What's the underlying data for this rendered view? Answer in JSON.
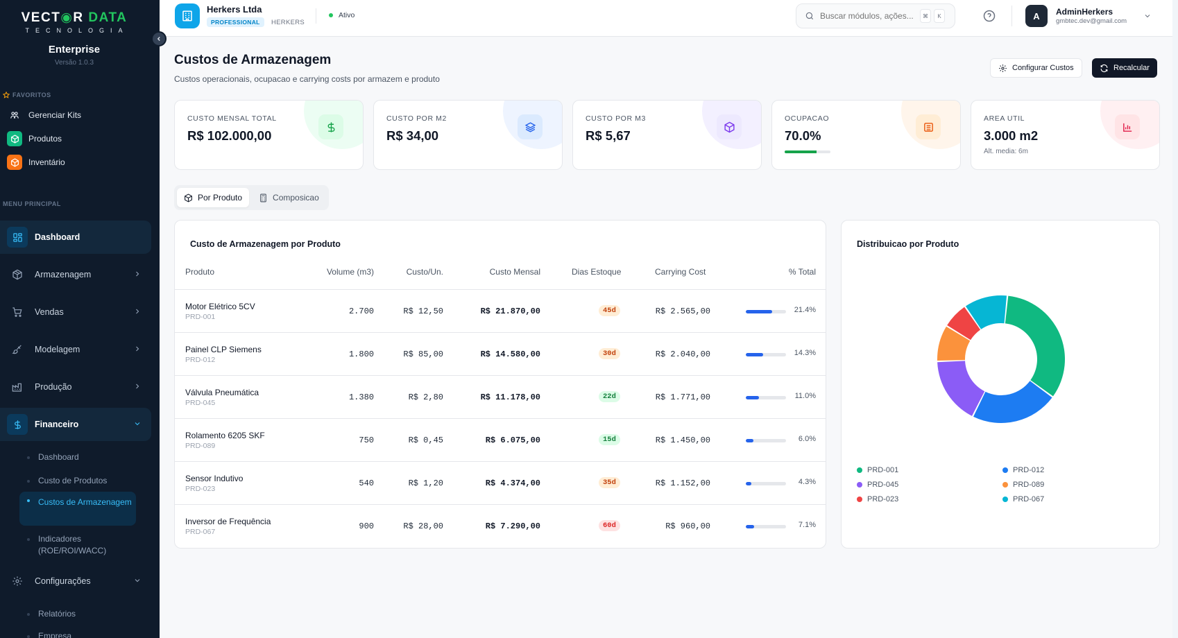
{
  "brand": {
    "logo_part1": "VECT",
    "logo_o": "◉",
    "logo_part2": "R",
    "logo_part3": "DATA",
    "logo_sub": "TECNOLOGIA",
    "plan": "Enterprise",
    "version": "Versão 1.0.3"
  },
  "sidebar": {
    "favorites_label": "FAVORITOS",
    "favorites": [
      {
        "label": "Gerenciar Kits",
        "icon": "kits-icon"
      },
      {
        "label": "Produtos",
        "icon": "box-icon",
        "color": "#10b981"
      },
      {
        "label": "Inventário",
        "icon": "box-icon",
        "color": "#f97316"
      }
    ],
    "menu_label": "MENU PRINCIPAL",
    "items": [
      {
        "label": "Dashboard",
        "icon": "grid-icon"
      },
      {
        "label": "Armazenagem",
        "icon": "package-icon"
      },
      {
        "label": "Vendas",
        "icon": "cart-icon"
      },
      {
        "label": "Modelagem",
        "icon": "brush-icon"
      },
      {
        "label": "Produção",
        "icon": "factory-icon"
      },
      {
        "label": "Financeiro",
        "icon": "dollar-icon"
      },
      {
        "label": "Configurações",
        "icon": "gear-icon"
      }
    ],
    "financeiro_sub": [
      "Dashboard",
      "Custo de Produtos",
      "Custos de Armazenagem",
      "Indicadores (ROE/ROI/WACC)"
    ],
    "config_sub": [
      "Relatórios",
      "Empresa"
    ]
  },
  "header": {
    "company": "Herkers Ltda",
    "badge": "PROFESSIONAL",
    "tenant": "HERKERS",
    "status": "Ativo",
    "search_placeholder": "Buscar módulos, ações...",
    "kbd1": "⌘",
    "kbd2": "K",
    "avatar_letter": "A",
    "user_name": "AdminHerkers",
    "user_email": "gmbtec.dev@gmail.com"
  },
  "page": {
    "title": "Custos de Armazenagem",
    "subtitle": "Custos operacionais, ocupacao e carrying costs por armazem e produto",
    "btn_config": "Configurar Custos",
    "btn_recalc": "Recalcular"
  },
  "kpis": [
    {
      "label": "CUSTO MENSAL TOTAL",
      "value": "R$ 102.000,00",
      "icon": "dollar-icon",
      "color": "#16a34a",
      "bg": "#dcfce7",
      "blob": "#ecfdf3"
    },
    {
      "label": "CUSTO POR M2",
      "value": "R$ 34,00",
      "icon": "layers-icon",
      "color": "#2563eb",
      "bg": "#dbeafe",
      "blob": "#eef4ff"
    },
    {
      "label": "CUSTO POR M3",
      "value": "R$ 5,67",
      "icon": "cube-icon",
      "color": "#7c3aed",
      "bg": "#ede9fe",
      "blob": "#f3f0ff"
    },
    {
      "label": "OCUPACAO",
      "value": "70.0%",
      "icon": "warehouse-icon",
      "color": "#ea580c",
      "bg": "#ffedd5",
      "blob": "#fff5eb",
      "progress": 0.7
    },
    {
      "label": "AREA UTIL",
      "value": "3.000 m2",
      "sub": "Alt. media: 6m",
      "icon": "chart-bar-icon",
      "color": "#e11d48",
      "bg": "#ffe4e6",
      "blob": "#fff0f2"
    }
  ],
  "tabs": [
    {
      "label": "Por Produto",
      "icon": "box-icon"
    },
    {
      "label": "Composicao",
      "icon": "calculator-icon"
    }
  ],
  "table": {
    "title": "Custo de Armazenagem por Produto",
    "headers": [
      "Produto",
      "Volume (m3)",
      "Custo/Un.",
      "Custo Mensal",
      "Dias Estoque",
      "Carrying Cost",
      "% Total"
    ],
    "rows": [
      {
        "name": "Motor Elétrico 5CV",
        "code": "PRD-001",
        "volume": "2.700",
        "unit": "R$ 12,50",
        "monthly": "R$ 21.870,00",
        "days": "45d",
        "days_color": "#c2410c",
        "days_bg": "#ffedd5",
        "carrying": "R$ 2.565,00",
        "pct": "21.4%",
        "pct_value": 21.4
      },
      {
        "name": "Painel CLP Siemens",
        "code": "PRD-012",
        "volume": "1.800",
        "unit": "R$ 85,00",
        "monthly": "R$ 14.580,00",
        "days": "30d",
        "days_color": "#c2410c",
        "days_bg": "#ffedd5",
        "carrying": "R$ 2.040,00",
        "pct": "14.3%",
        "pct_value": 14.3
      },
      {
        "name": "Válvula Pneumática",
        "code": "PRD-045",
        "volume": "1.380",
        "unit": "R$ 2,80",
        "monthly": "R$ 11.178,00",
        "days": "22d",
        "days_color": "#15803d",
        "days_bg": "#dcfce7",
        "carrying": "R$ 1.771,00",
        "pct": "11.0%",
        "pct_value": 11.0
      },
      {
        "name": "Rolamento 6205 SKF",
        "code": "PRD-089",
        "volume": "750",
        "unit": "R$ 0,45",
        "monthly": "R$ 6.075,00",
        "days": "15d",
        "days_color": "#15803d",
        "days_bg": "#dcfce7",
        "carrying": "R$ 1.450,00",
        "pct": "6.0%",
        "pct_value": 6.0
      },
      {
        "name": "Sensor Indutivo",
        "code": "PRD-023",
        "volume": "540",
        "unit": "R$ 1,20",
        "monthly": "R$ 4.374,00",
        "days": "35d",
        "days_color": "#c2410c",
        "days_bg": "#ffedd5",
        "carrying": "R$ 1.152,00",
        "pct": "4.3%",
        "pct_value": 4.3
      },
      {
        "name": "Inversor de Frequência",
        "code": "PRD-067",
        "volume": "900",
        "unit": "R$ 28,00",
        "monthly": "R$ 7.290,00",
        "days": "60d",
        "days_color": "#dc2626",
        "days_bg": "#fee2e2",
        "carrying": "R$ 960,00",
        "pct": "7.1%",
        "pct_value": 7.1
      }
    ]
  },
  "chart_data": {
    "type": "pie",
    "title": "Distribuicao por Produto",
    "categories": [
      "PRD-001",
      "PRD-012",
      "PRD-045",
      "PRD-089",
      "PRD-023",
      "PRD-067"
    ],
    "values": [
      21870,
      14580,
      11178,
      6075,
      4374,
      7290
    ],
    "colors": [
      "#10b981",
      "#1d7cf2",
      "#8b5cf6",
      "#fb923c",
      "#ef4444",
      "#06b6d4"
    ],
    "legend": "bottom"
  }
}
